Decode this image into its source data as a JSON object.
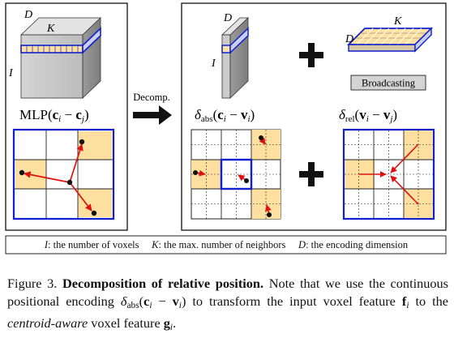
{
  "figure": {
    "panel_left": {
      "cube_labels": {
        "d": "D",
        "k": "K",
        "i": "I"
      },
      "mlp_label": "MLP(c_i − c_j)"
    },
    "arrow_label": "Decomp.",
    "panel_right": {
      "abs_labels": {
        "d": "D",
        "i": "I"
      },
      "plus_sign": "+",
      "rel_labels": {
        "d": "D",
        "k": "K"
      },
      "broadcasting_label": "Broadcasting",
      "abs_formula": "δ_abs(c_i − v_i)",
      "rel_formula": "δ_rel(v_i − v_j)"
    },
    "legend": [
      {
        "symbol": "I",
        "text": ": the number of voxels"
      },
      {
        "symbol": "K",
        "text": ": the max. number of neighbors"
      },
      {
        "symbol": "D",
        "text": ": the encoding dimension"
      }
    ]
  },
  "caption": {
    "figure_label": "Figure 3.",
    "title": "Decomposition of relative position.",
    "text_1": "Note that we use the continuous positional encoding",
    "formula": "δ_abs(c_i − v_i)",
    "text_2": "to transform the input voxel feature",
    "feature_in": "f_i",
    "text_3": "to the",
    "emphasis": "centroid-aware",
    "text_4": "voxel feature",
    "feature_out": "g_i",
    "end": "."
  },
  "colors": {
    "highlight_fill": "#fde0a0",
    "highlight_blue": "#1020d0",
    "arrow_red": "#e01010",
    "cube_gray": "#c8c8c8",
    "border": "#222222"
  }
}
